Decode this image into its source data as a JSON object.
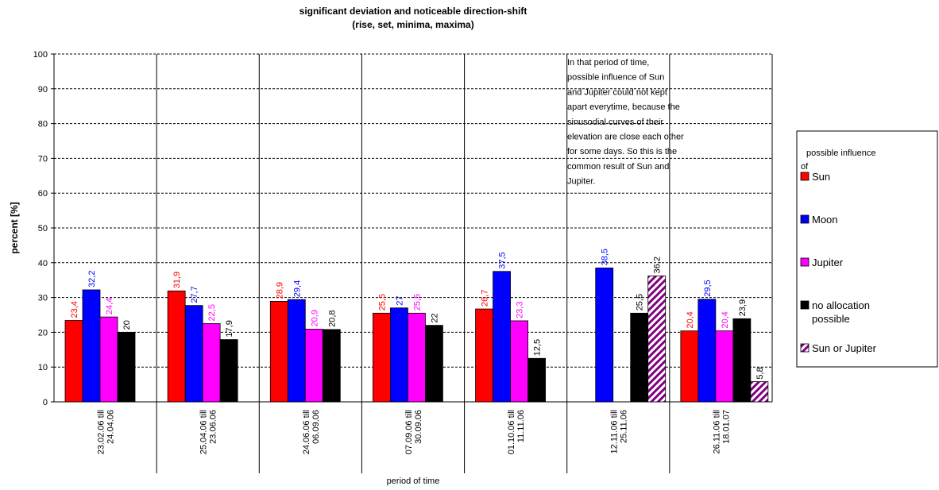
{
  "chart_data": {
    "type": "bar",
    "title": [
      "significant deviation and noticeable direction-shift",
      "(rise, set, minima, maxima)"
    ],
    "y_label": "percent [%]",
    "x_label": "period of time",
    "categories": [
      [
        "23.02.06 till",
        "24.04.06"
      ],
      [
        "25.04.06 till",
        "23.06.06"
      ],
      [
        "24.06.06 till",
        "06.09.06"
      ],
      [
        "07.09.06 till",
        "30.09.06"
      ],
      [
        "01.10.06 till",
        "11.11.06"
      ],
      [
        "12.11.06 till",
        "25.11.06"
      ],
      [
        "26.11.06 till",
        "18.01.07"
      ]
    ],
    "series": [
      {
        "name": "Sun",
        "color": "#ff0000",
        "values": [
          23.4,
          31.9,
          28.9,
          25.5,
          26.7,
          null,
          20.4
        ],
        "value_labels": [
          "23,4",
          "31,9",
          "28,9",
          "25,5",
          "26,7",
          null,
          "20,4"
        ]
      },
      {
        "name": "Moon",
        "color": "#0000ff",
        "values": [
          32.2,
          27.7,
          29.4,
          27,
          37.5,
          38.5,
          29.5
        ],
        "value_labels": [
          "32,2",
          "27,7",
          "29,4",
          "27",
          "37,5",
          "38,5",
          "29,5"
        ]
      },
      {
        "name": "Jupiter",
        "color": "#ff00ff",
        "values": [
          24.4,
          22.5,
          20.9,
          25.5,
          23.3,
          null,
          20.4
        ],
        "value_labels": [
          "24,4",
          "22,5",
          "20,9",
          "25,5",
          "23,3",
          null,
          "20,4"
        ]
      },
      {
        "name": "no allocation possible",
        "color": "#000000",
        "values": [
          20,
          17.9,
          20.8,
          22,
          12.5,
          25.5,
          23.9
        ],
        "value_labels": [
          "20",
          "17,9",
          "20,8",
          "22",
          "12,5",
          "25,5",
          "23,9"
        ]
      },
      {
        "name": "Sun or Jupiter",
        "color": "#800080",
        "hatch": true,
        "values": [
          null,
          null,
          null,
          null,
          null,
          36.2,
          5.8
        ],
        "value_labels": [
          null,
          null,
          null,
          null,
          null,
          "36,2",
          "5,8"
        ]
      }
    ],
    "ylim": [
      0,
      100
    ],
    "yticks": [
      0,
      10,
      20,
      30,
      40,
      50,
      60,
      70,
      80,
      90,
      100
    ],
    "grid": true,
    "legend_title": "possible influence of",
    "annotation": [
      "In that period of time,",
      "possible influence of Sun",
      "and Jupiter could not kept",
      "apart everytime, because the",
      "sinusodial curves of their",
      "elevation are close each other",
      "for some days. So this is the",
      "common result of Sun and",
      "Jupiter."
    ]
  }
}
